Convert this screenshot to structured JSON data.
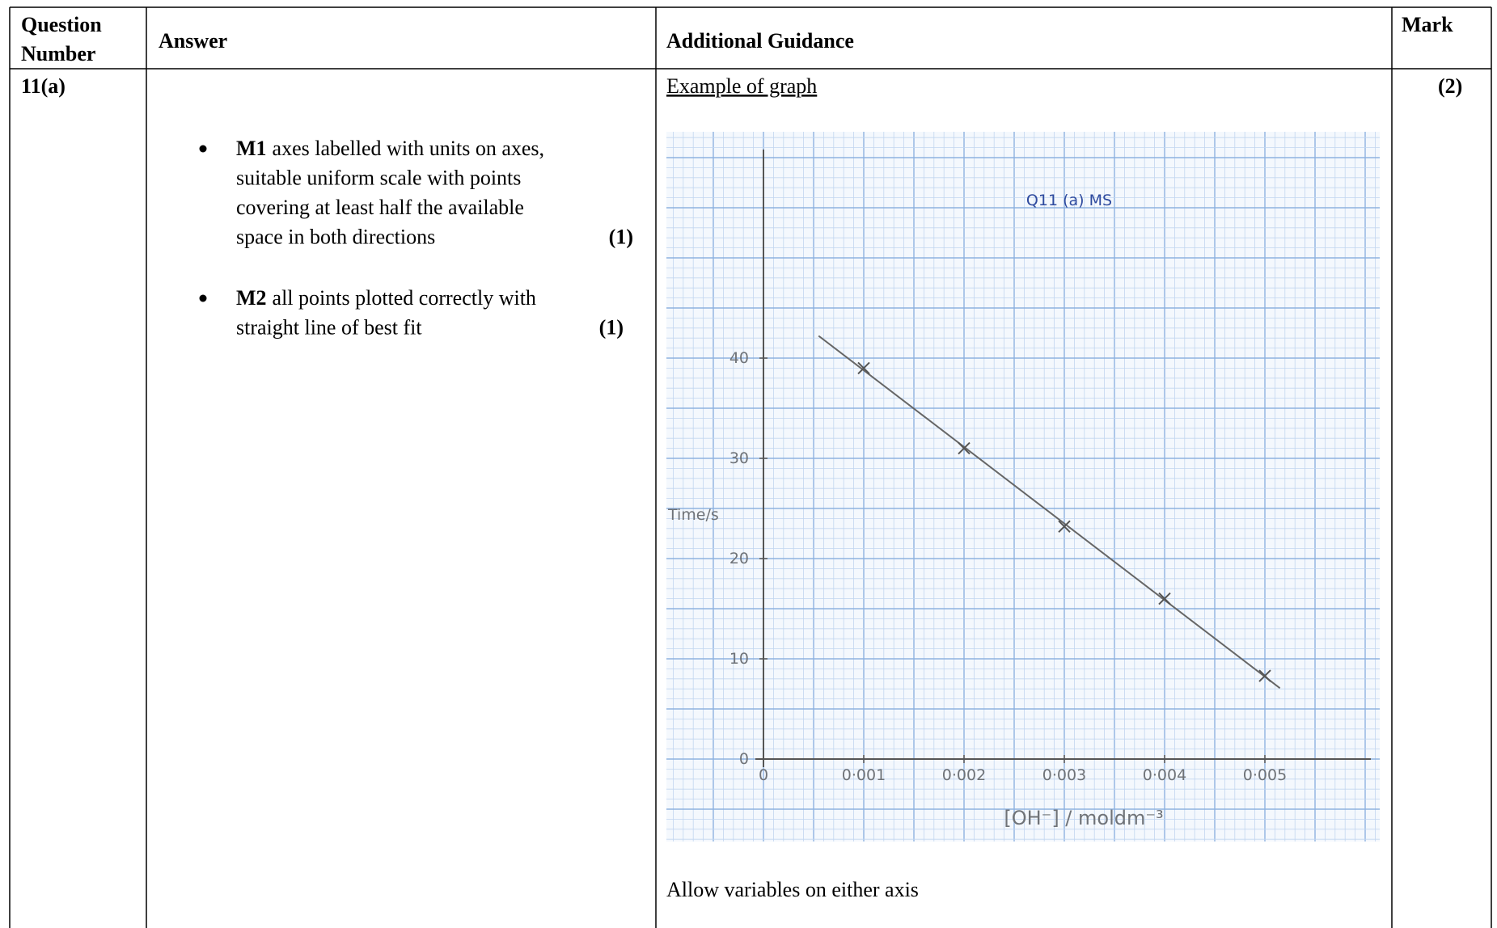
{
  "header": {
    "question_number": [
      "Question",
      "Number"
    ],
    "answer": "Answer",
    "additional_guidance": "Additional Guidance",
    "mark": "Mark"
  },
  "row": {
    "question_number": "11(a)",
    "answer": {
      "bullets": [
        {
          "label": "M1",
          "lines": [
            "axes labelled with units on axes,",
            "suitable uniform scale with points",
            "covering at least half the available",
            "space in both directions"
          ],
          "mark": "(1)"
        },
        {
          "label": "M2",
          "lines": [
            "all points plotted correctly with",
            "straight line of best fit"
          ],
          "mark": "(1)"
        }
      ]
    },
    "guidance": {
      "heading": "Example of graph",
      "graph": {
        "title": "Q11 (a) MS",
        "y_label": "Time/s",
        "x_label": "[OH⁻] / moldm⁻³",
        "yticks": [
          0,
          10,
          20,
          30,
          40
        ],
        "xticks": [
          {
            "value": 0,
            "label": "0"
          },
          {
            "value": 0.001,
            "label": "0·001"
          },
          {
            "value": 0.002,
            "label": "0·002"
          },
          {
            "value": 0.003,
            "label": "0·003"
          },
          {
            "value": 0.004,
            "label": "0·004"
          },
          {
            "value": 0.005,
            "label": "0·005"
          }
        ],
        "x": [
          0.001,
          0.002,
          0.003,
          0.004,
          0.005
        ],
        "y": [
          39,
          31,
          23.2,
          16,
          8.3
        ]
      },
      "note": "Allow variables on either axis"
    },
    "mark": "(2)"
  }
}
